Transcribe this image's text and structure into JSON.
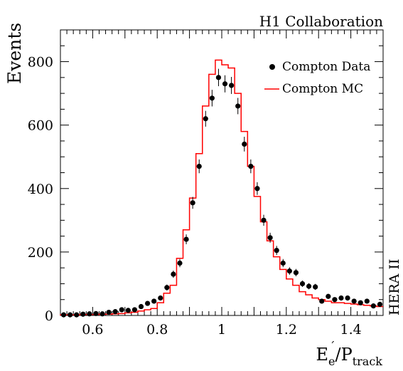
{
  "chart_data": {
    "type": "histogram-with-points",
    "collaboration": "H1 Collaboration",
    "side_label": "HERA II",
    "xlabel": {
      "base": "E",
      "sub": "e",
      "sup": "´",
      "slash": "/P",
      "sub2": "track"
    },
    "ylabel": "Events",
    "xlim": [
      0.5,
      1.5
    ],
    "ylim": [
      0,
      900
    ],
    "x_ticks": [
      0.6,
      0.8,
      1.0,
      1.2,
      1.4
    ],
    "x_tick_labels": [
      "0.6",
      "0.8",
      "1",
      "1.2",
      "1.4"
    ],
    "y_ticks": [
      0,
      200,
      400,
      600,
      800
    ],
    "y_tick_labels": [
      "0",
      "200",
      "400",
      "600",
      "800"
    ],
    "legend": {
      "position": "top-right",
      "entries": [
        "Compton Data",
        "Compton MC"
      ]
    },
    "colors": {
      "data": "#000000",
      "mc": "#ff0000",
      "axes": "#000000"
    },
    "bin_edges_start": 0.5,
    "bin_width": 0.02,
    "series": [
      {
        "name": "Compton Data",
        "type": "points",
        "x": [
          0.51,
          0.53,
          0.55,
          0.57,
          0.59,
          0.61,
          0.63,
          0.65,
          0.67,
          0.69,
          0.71,
          0.73,
          0.75,
          0.77,
          0.79,
          0.81,
          0.83,
          0.85,
          0.87,
          0.89,
          0.91,
          0.93,
          0.95,
          0.97,
          0.99,
          1.01,
          1.03,
          1.05,
          1.07,
          1.09,
          1.11,
          1.13,
          1.15,
          1.17,
          1.19,
          1.21,
          1.23,
          1.25,
          1.27,
          1.29,
          1.31,
          1.33,
          1.35,
          1.37,
          1.39,
          1.41,
          1.43,
          1.45,
          1.47,
          1.49
        ],
        "y": [
          2,
          2,
          2,
          4,
          5,
          6,
          5,
          10,
          12,
          18,
          16,
          18,
          28,
          38,
          45,
          55,
          88,
          130,
          165,
          240,
          355,
          470,
          620,
          685,
          750,
          730,
          725,
          660,
          540,
          470,
          400,
          300,
          245,
          205,
          165,
          140,
          135,
          100,
          92,
          90,
          45,
          60,
          50,
          55,
          55,
          45,
          40,
          45,
          30,
          35
        ],
        "err": [
          1.5,
          1.5,
          1.5,
          2,
          2.2,
          2.5,
          2.2,
          3.2,
          3.5,
          4.3,
          4,
          4.3,
          5.3,
          6.2,
          6.7,
          7.4,
          9.4,
          11.4,
          12.8,
          15.5,
          18.8,
          21.7,
          24.9,
          26.2,
          27.4,
          27,
          26.9,
          25.7,
          23.2,
          21.7,
          20,
          17.3,
          15.7,
          14.3,
          12.8,
          11.8,
          11.6,
          10,
          9.6,
          9.5,
          6.7,
          7.7,
          7.1,
          7.4,
          7.4,
          6.7,
          6.3,
          6.7,
          5.5,
          5.9
        ]
      },
      {
        "name": "Compton MC",
        "type": "step",
        "values": [
          2,
          2,
          2,
          3,
          3,
          3,
          4,
          4,
          5,
          6,
          8,
          10,
          14,
          18,
          22,
          40,
          70,
          95,
          180,
          270,
          370,
          510,
          660,
          760,
          805,
          790,
          780,
          700,
          580,
          470,
          375,
          295,
          235,
          185,
          145,
          115,
          95,
          75,
          65,
          55,
          50,
          45,
          40,
          40,
          38,
          36,
          34,
          32,
          30,
          28
        ]
      }
    ]
  }
}
